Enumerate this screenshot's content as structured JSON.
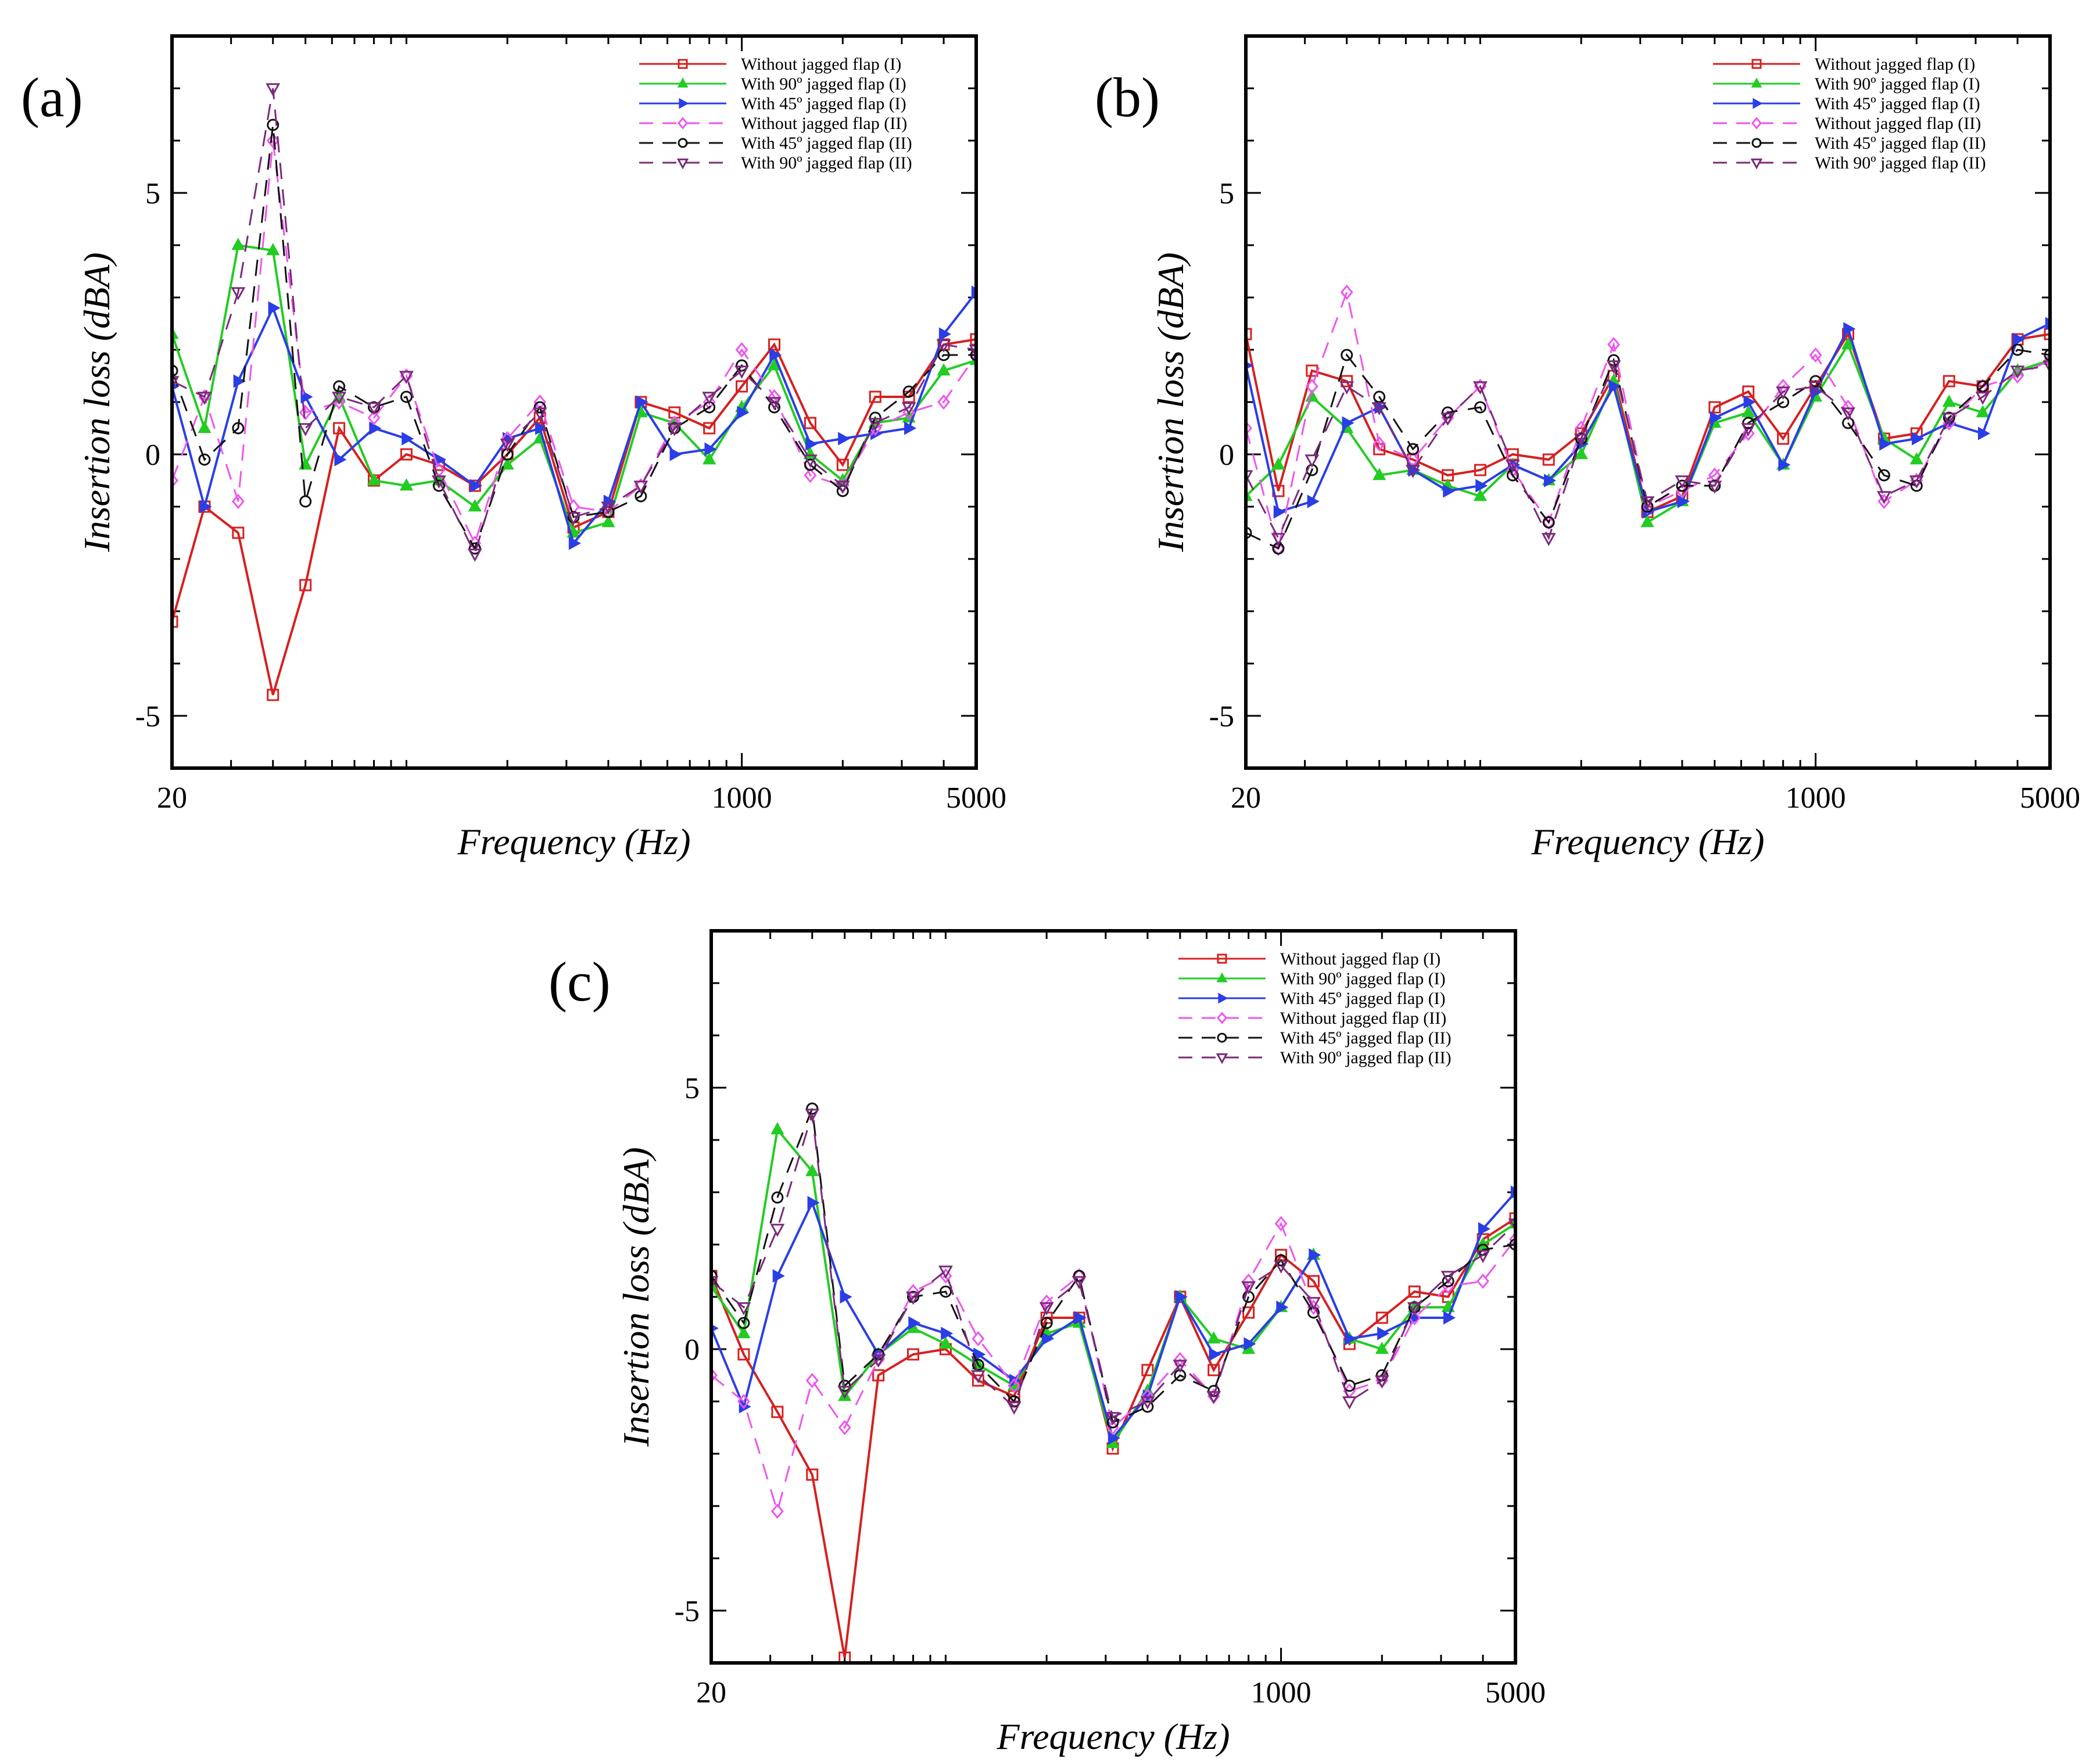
{
  "figure": {
    "legend_labels": [
      "Without jagged flap (I)",
      "With 90º jagged flap (I)",
      "With 45º jagged flap (I)",
      "Without jagged flap (II)",
      "With 45º jagged flap (II)",
      "With 90º jagged flap (II)"
    ],
    "series_styles": [
      {
        "color": "#d62020",
        "dash": "solid",
        "marker": "square"
      },
      {
        "color": "#22cc22",
        "dash": "solid",
        "marker": "triangle-up"
      },
      {
        "color": "#2a3ee6",
        "dash": "solid",
        "marker": "triangle-right"
      },
      {
        "color": "#ee55ee",
        "dash": "dashed",
        "marker": "diamond"
      },
      {
        "color": "#111111",
        "dash": "dashed",
        "marker": "circle"
      },
      {
        "color": "#7a2a7a",
        "dash": "dashed",
        "marker": "triangle-down"
      }
    ]
  },
  "chart_data": [
    {
      "panel_label": "(a)",
      "type": "line",
      "xlabel": "Frequency (Hz)",
      "ylabel": "Insertion loss (dBA)",
      "xscale": "log",
      "xlim": [
        20,
        5000
      ],
      "ylim": [
        -6,
        8
      ],
      "xticks": [
        20,
        1000,
        5000
      ],
      "xtick_labels": [
        "20",
        "1000",
        "5000"
      ],
      "yticks": [
        -5,
        0,
        5
      ],
      "ytick_labels": [
        "-5",
        "0",
        "5"
      ],
      "legend_position": "top-right",
      "x": [
        20,
        25,
        31.5,
        40,
        50,
        63,
        80,
        100,
        125,
        160,
        200,
        250,
        315,
        400,
        500,
        630,
        800,
        1000,
        1250,
        1600,
        2000,
        2500,
        3150,
        4000,
        5000
      ],
      "series": [
        {
          "name": "Without jagged flap (I)",
          "values": [
            -3.2,
            -1.0,
            -1.5,
            -4.6,
            -2.5,
            0.5,
            -0.5,
            0.0,
            -0.2,
            -0.6,
            0.0,
            0.7,
            -1.4,
            -1.1,
            1.0,
            0.8,
            0.5,
            1.3,
            2.1,
            0.6,
            -0.2,
            1.1,
            1.1,
            2.1,
            2.2
          ]
        },
        {
          "name": "With 90º jagged flap (I)",
          "values": [
            2.3,
            0.5,
            4.0,
            3.9,
            -0.2,
            1.1,
            -0.5,
            -0.6,
            -0.5,
            -1.0,
            -0.2,
            0.3,
            -1.5,
            -1.3,
            0.8,
            0.6,
            -0.1,
            0.9,
            1.7,
            0.0,
            -0.5,
            0.6,
            0.7,
            1.6,
            1.8
          ]
        },
        {
          "name": "With 45º jagged flap (I)",
          "values": [
            1.3,
            -1.0,
            1.4,
            2.8,
            1.1,
            -0.1,
            0.5,
            0.3,
            -0.1,
            -0.6,
            0.3,
            0.5,
            -1.7,
            -0.9,
            1.0,
            0.0,
            0.1,
            0.8,
            1.9,
            0.2,
            0.3,
            0.4,
            0.5,
            2.3,
            3.1
          ]
        },
        {
          "name": "Without jagged flap (II)",
          "values": [
            -0.5,
            1.1,
            -0.9,
            6.0,
            0.8,
            1.0,
            0.7,
            1.5,
            -0.3,
            -1.7,
            0.3,
            1.0,
            -1.0,
            -1.1,
            -0.6,
            0.6,
            1.0,
            2.0,
            1.1,
            -0.4,
            -0.6,
            0.5,
            0.8,
            1.0,
            1.9
          ]
        },
        {
          "name": "With 45º jagged flap (II)",
          "values": [
            1.6,
            -0.1,
            0.5,
            6.3,
            -0.9,
            1.3,
            0.9,
            1.1,
            -0.6,
            -1.8,
            0.0,
            0.9,
            -1.2,
            -1.1,
            -0.8,
            0.5,
            0.9,
            1.7,
            0.9,
            -0.2,
            -0.7,
            0.7,
            1.2,
            1.9,
            1.9
          ]
        },
        {
          "name": "With 90º jagged flap (II)",
          "values": [
            1.4,
            1.1,
            3.1,
            7.0,
            0.5,
            1.1,
            0.9,
            1.5,
            -0.5,
            -1.9,
            0.2,
            0.8,
            -1.2,
            -1.0,
            -0.6,
            0.5,
            1.1,
            1.6,
            1.0,
            -0.1,
            -0.6,
            0.6,
            0.9,
            2.1,
            2.0
          ]
        }
      ]
    },
    {
      "panel_label": "(b)",
      "type": "line",
      "xlabel": "Frequency (Hz)",
      "ylabel": "Insertion loss (dBA)",
      "xscale": "log",
      "xlim": [
        20,
        5000
      ],
      "ylim": [
        -6,
        8
      ],
      "xticks": [
        20,
        1000,
        5000
      ],
      "xtick_labels": [
        "20",
        "1000",
        "5000"
      ],
      "yticks": [
        -5,
        0,
        5
      ],
      "ytick_labels": [
        "-5",
        "0",
        "5"
      ],
      "legend_position": "top-right",
      "x": [
        20,
        25,
        31.5,
        40,
        50,
        63,
        80,
        100,
        125,
        160,
        200,
        250,
        315,
        400,
        500,
        630,
        800,
        1000,
        1250,
        1600,
        2000,
        2500,
        3150,
        4000,
        5000
      ],
      "series": [
        {
          "name": "Without jagged flap (I)",
          "values": [
            2.3,
            -0.7,
            1.6,
            1.4,
            0.1,
            -0.1,
            -0.4,
            -0.3,
            0.0,
            -0.1,
            0.4,
            1.5,
            -1.1,
            -0.8,
            0.9,
            1.2,
            0.3,
            1.3,
            2.3,
            0.3,
            0.4,
            1.4,
            1.3,
            2.2,
            2.3
          ]
        },
        {
          "name": "With 90º jagged flap (I)",
          "values": [
            -0.8,
            -0.2,
            1.1,
            0.5,
            -0.4,
            -0.3,
            -0.6,
            -0.8,
            -0.2,
            -0.5,
            0.0,
            1.4,
            -1.3,
            -0.9,
            0.6,
            0.8,
            -0.2,
            1.1,
            2.1,
            0.3,
            -0.1,
            1.0,
            0.8,
            1.6,
            1.8
          ]
        },
        {
          "name": "With 45º jagged flap (I)",
          "values": [
            1.7,
            -1.1,
            -0.9,
            0.6,
            0.9,
            -0.3,
            -0.7,
            -0.6,
            -0.2,
            -0.5,
            0.2,
            1.3,
            -1.1,
            -0.9,
            0.7,
            1.0,
            -0.2,
            1.2,
            2.4,
            0.2,
            0.3,
            0.6,
            0.4,
            2.2,
            2.5
          ]
        },
        {
          "name": "Without jagged flap (II)",
          "values": [
            0.5,
            -1.8,
            1.3,
            3.1,
            0.2,
            -0.1,
            0.7,
            1.3,
            -0.3,
            -1.3,
            0.5,
            2.1,
            -1.0,
            -0.7,
            -0.4,
            0.4,
            1.3,
            1.9,
            0.9,
            -0.9,
            -0.5,
            0.6,
            1.3,
            1.5,
            1.8
          ]
        },
        {
          "name": "With 45º jagged flap (II)",
          "values": [
            -1.5,
            -1.8,
            -0.3,
            1.9,
            1.1,
            0.1,
            0.8,
            0.9,
            -0.4,
            -1.3,
            0.3,
            1.8,
            -1.0,
            -0.6,
            -0.6,
            0.6,
            1.0,
            1.4,
            0.6,
            -0.4,
            -0.6,
            0.7,
            1.3,
            2.0,
            1.9
          ]
        },
        {
          "name": "With 90º jagged flap (II)",
          "values": [
            -0.4,
            -1.6,
            -0.1,
            1.3,
            0.9,
            -0.3,
            0.7,
            1.3,
            -0.2,
            -1.6,
            0.3,
            1.7,
            -0.9,
            -0.5,
            -0.6,
            0.5,
            1.2,
            1.3,
            0.8,
            -0.8,
            -0.5,
            0.7,
            1.1,
            1.6,
            1.7
          ]
        }
      ]
    },
    {
      "panel_label": "(c)",
      "type": "line",
      "xlabel": "Frequency (Hz)",
      "ylabel": "Insertion loss (dBA)",
      "xscale": "log",
      "xlim": [
        20,
        5000
      ],
      "ylim": [
        -6,
        8
      ],
      "xticks": [
        20,
        1000,
        5000
      ],
      "xtick_labels": [
        "20",
        "1000",
        "5000"
      ],
      "yticks": [
        -5,
        0,
        5
      ],
      "ytick_labels": [
        "-5",
        "0",
        "5"
      ],
      "legend_position": "top-right",
      "x": [
        20,
        25,
        31.5,
        40,
        50,
        63,
        80,
        100,
        125,
        160,
        200,
        250,
        315,
        400,
        500,
        630,
        800,
        1000,
        1250,
        1600,
        2000,
        2500,
        3150,
        4000,
        5000
      ],
      "series": [
        {
          "name": "Without jagged flap (I)",
          "values": [
            1.4,
            -0.1,
            -1.2,
            -2.4,
            -5.9,
            -0.5,
            -0.1,
            0.0,
            -0.6,
            -0.9,
            0.6,
            0.6,
            -1.9,
            -0.4,
            1.0,
            -0.4,
            0.7,
            1.8,
            1.3,
            0.1,
            0.6,
            1.1,
            1.0,
            2.1,
            2.5
          ]
        },
        {
          "name": "With 90º jagged flap (I)",
          "values": [
            1.2,
            0.3,
            4.2,
            3.4,
            -0.9,
            -0.1,
            0.4,
            0.1,
            -0.3,
            -0.7,
            0.3,
            0.5,
            -1.8,
            -0.8,
            1.0,
            0.2,
            0.0,
            0.8,
            1.8,
            0.2,
            0.0,
            0.8,
            0.8,
            2.0,
            2.4
          ]
        },
        {
          "name": "With 45º jagged flap (I)",
          "values": [
            0.4,
            -1.1,
            1.4,
            2.8,
            1.0,
            -0.1,
            0.5,
            0.3,
            -0.1,
            -0.6,
            0.2,
            0.6,
            -1.7,
            -0.9,
            1.0,
            -0.1,
            0.1,
            0.8,
            1.8,
            0.2,
            0.3,
            0.6,
            0.6,
            2.3,
            3.0
          ]
        },
        {
          "name": "Without jagged flap (II)",
          "values": [
            -0.5,
            -1.0,
            -3.1,
            -0.6,
            -1.5,
            -0.2,
            1.1,
            1.4,
            0.2,
            -0.7,
            0.9,
            1.4,
            -1.5,
            -0.9,
            -0.2,
            -0.9,
            1.3,
            2.4,
            0.8,
            -0.8,
            -0.6,
            0.6,
            1.2,
            1.3,
            2.1
          ]
        },
        {
          "name": "With 45º jagged flap (II)",
          "values": [
            1.4,
            0.5,
            2.9,
            4.6,
            -0.7,
            -0.1,
            1.0,
            1.1,
            -0.3,
            -1.0,
            0.5,
            1.4,
            -1.4,
            -1.1,
            -0.5,
            -0.8,
            1.0,
            1.7,
            0.7,
            -0.7,
            -0.5,
            0.8,
            1.3,
            1.9,
            2.0
          ]
        },
        {
          "name": "With 90º jagged flap (II)",
          "values": [
            1.3,
            0.8,
            2.3,
            4.5,
            -0.8,
            -0.2,
            1.0,
            1.5,
            -0.5,
            -1.1,
            0.8,
            1.3,
            -1.3,
            -1.0,
            -0.3,
            -0.9,
            1.2,
            1.6,
            0.9,
            -1.0,
            -0.6,
            0.8,
            1.4,
            1.8,
            2.4
          ]
        }
      ]
    }
  ]
}
